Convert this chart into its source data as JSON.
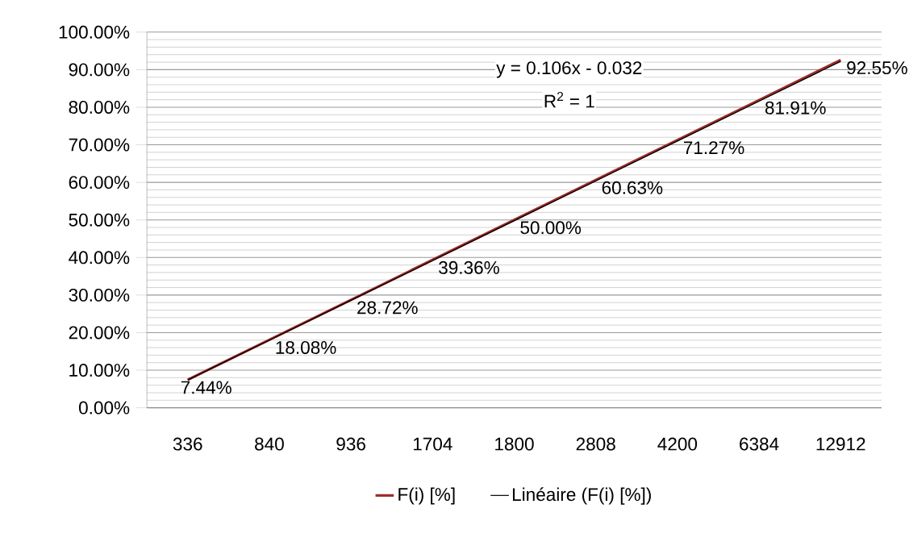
{
  "chart_data": {
    "type": "line",
    "categories": [
      "336",
      "840",
      "936",
      "1704",
      "1800",
      "2808",
      "4200",
      "6384",
      "12912"
    ],
    "series": [
      {
        "name": "F(i)  [%]",
        "color": "#9b2d2a",
        "values": [
          7.44,
          18.08,
          28.72,
          39.36,
          50.0,
          60.63,
          71.27,
          81.91,
          92.55
        ],
        "value_labels": [
          "7.44%",
          "18.08%",
          "28.72%",
          "39.36%",
          "50.00%",
          "60.63%",
          "71.27%",
          "81.91%",
          "92.55%"
        ]
      },
      {
        "name": "Linéaire (F(i)  [%])",
        "color": "#000000",
        "values": [
          7.4,
          18.0,
          28.6,
          39.2,
          49.8,
          60.4,
          71.0,
          81.6,
          92.2
        ]
      }
    ],
    "ylim": [
      0,
      100
    ],
    "yticks": [
      {
        "value": 0,
        "label": "0.00%"
      },
      {
        "value": 10,
        "label": "10.00%"
      },
      {
        "value": 20,
        "label": "20.00%"
      },
      {
        "value": 30,
        "label": "30.00%"
      },
      {
        "value": 40,
        "label": "40.00%"
      },
      {
        "value": 50,
        "label": "50.00%"
      },
      {
        "value": 60,
        "label": "60.00%"
      },
      {
        "value": 70,
        "label": "70.00%"
      },
      {
        "value": 80,
        "label": "80.00%"
      },
      {
        "value": 90,
        "label": "90.00%"
      },
      {
        "value": 100,
        "label": "100.00%"
      }
    ],
    "annotations": [
      "y = 0.106x - 0.032",
      "R$^{2}$ = 1"
    ],
    "grid": "y",
    "legend": "bottom",
    "marker": "none",
    "line_style": "solid"
  }
}
